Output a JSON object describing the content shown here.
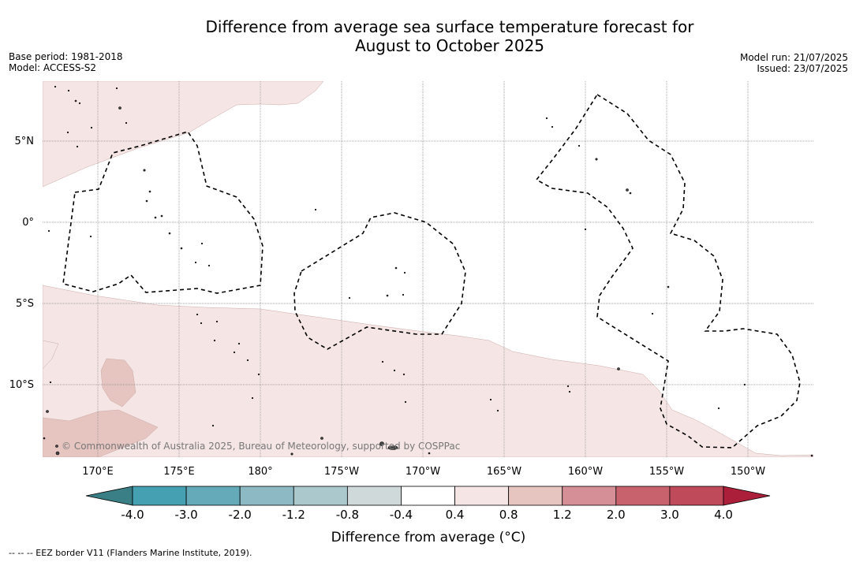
{
  "title_line1": "Difference from average sea surface temperature forecast for",
  "title_line2": "August to October 2025",
  "base_period": "Base period: 1981-2018",
  "model": "Model: ACCESS-S2",
  "model_run": "Model run: 21/07/2025",
  "issued": "Issued: 23/07/2025",
  "lat_labels": [
    "5°N",
    "0°",
    "5°S",
    "10°S"
  ],
  "lon_labels": [
    "170°E",
    "175°E",
    "180°",
    "175°W",
    "170°W",
    "165°W",
    "160°W",
    "155°W",
    "150°W"
  ],
  "copyright": "© Commonwealth of Australia 2025, Bureau of Meteorology, supported by COSPPac",
  "colorbar": {
    "ticks": [
      "-4.0",
      "-3.0",
      "-2.0",
      "-1.2",
      "-0.8",
      "-0.4",
      "0.4",
      "0.8",
      "1.2",
      "2.0",
      "3.0",
      "4.0"
    ],
    "title": "Difference from average (°C)",
    "colors": {
      "under": "#3a7e86",
      "bins": [
        "#45a0b2",
        "#65aab9",
        "#8cb9c4",
        "#abc9cd",
        "#cfd9da",
        "#ffffff",
        "#f5e6e5",
        "#e6c5c1",
        "#d58f96",
        "#c8636e",
        "#bf4a59"
      ],
      "over": "#ac1f3a"
    }
  },
  "legend_note": "--  --  -- EEZ border V11 (Flanders Marine Institute, 2019).",
  "map_colors": {
    "anom_0_4": "#f5e6e5",
    "anom_0_8": "#e6c5c1",
    "grid": "#888888",
    "eez": "#000000"
  }
}
